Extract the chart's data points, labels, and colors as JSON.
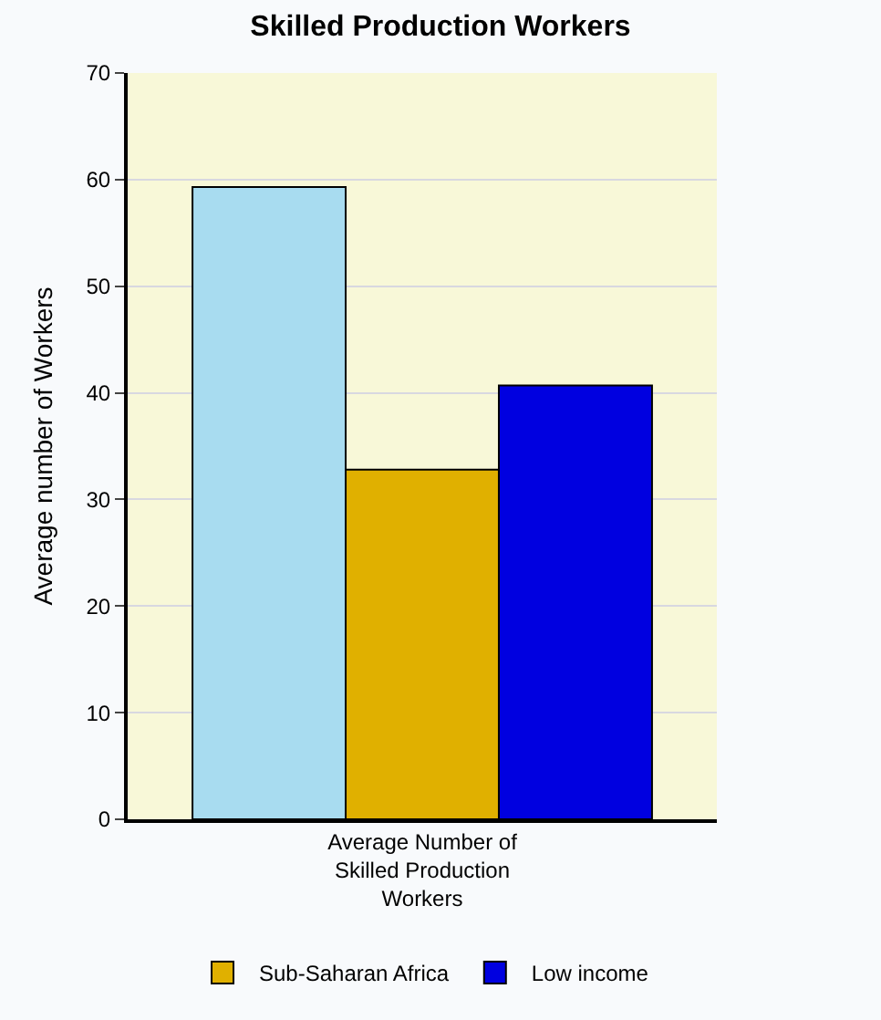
{
  "chart_data": {
    "type": "bar",
    "title": "Skilled Production Workers",
    "ylabel": "Average number of Workers",
    "categories": [
      "Average Number of Skilled Production Workers"
    ],
    "series": [
      {
        "color": "#a8dcf0",
        "values": [
          59.3
        ]
      },
      {
        "name": "Sub-Saharan Africa",
        "color": "#e0b000",
        "values": [
          32.8
        ]
      },
      {
        "name": "Low income",
        "color": "#0000e0",
        "values": [
          40.7
        ]
      }
    ],
    "ylim": [
      0,
      70
    ],
    "yticks": [
      0,
      10,
      20,
      30,
      40,
      50,
      60,
      70
    ],
    "grid": "y",
    "legend": "bottom"
  }
}
